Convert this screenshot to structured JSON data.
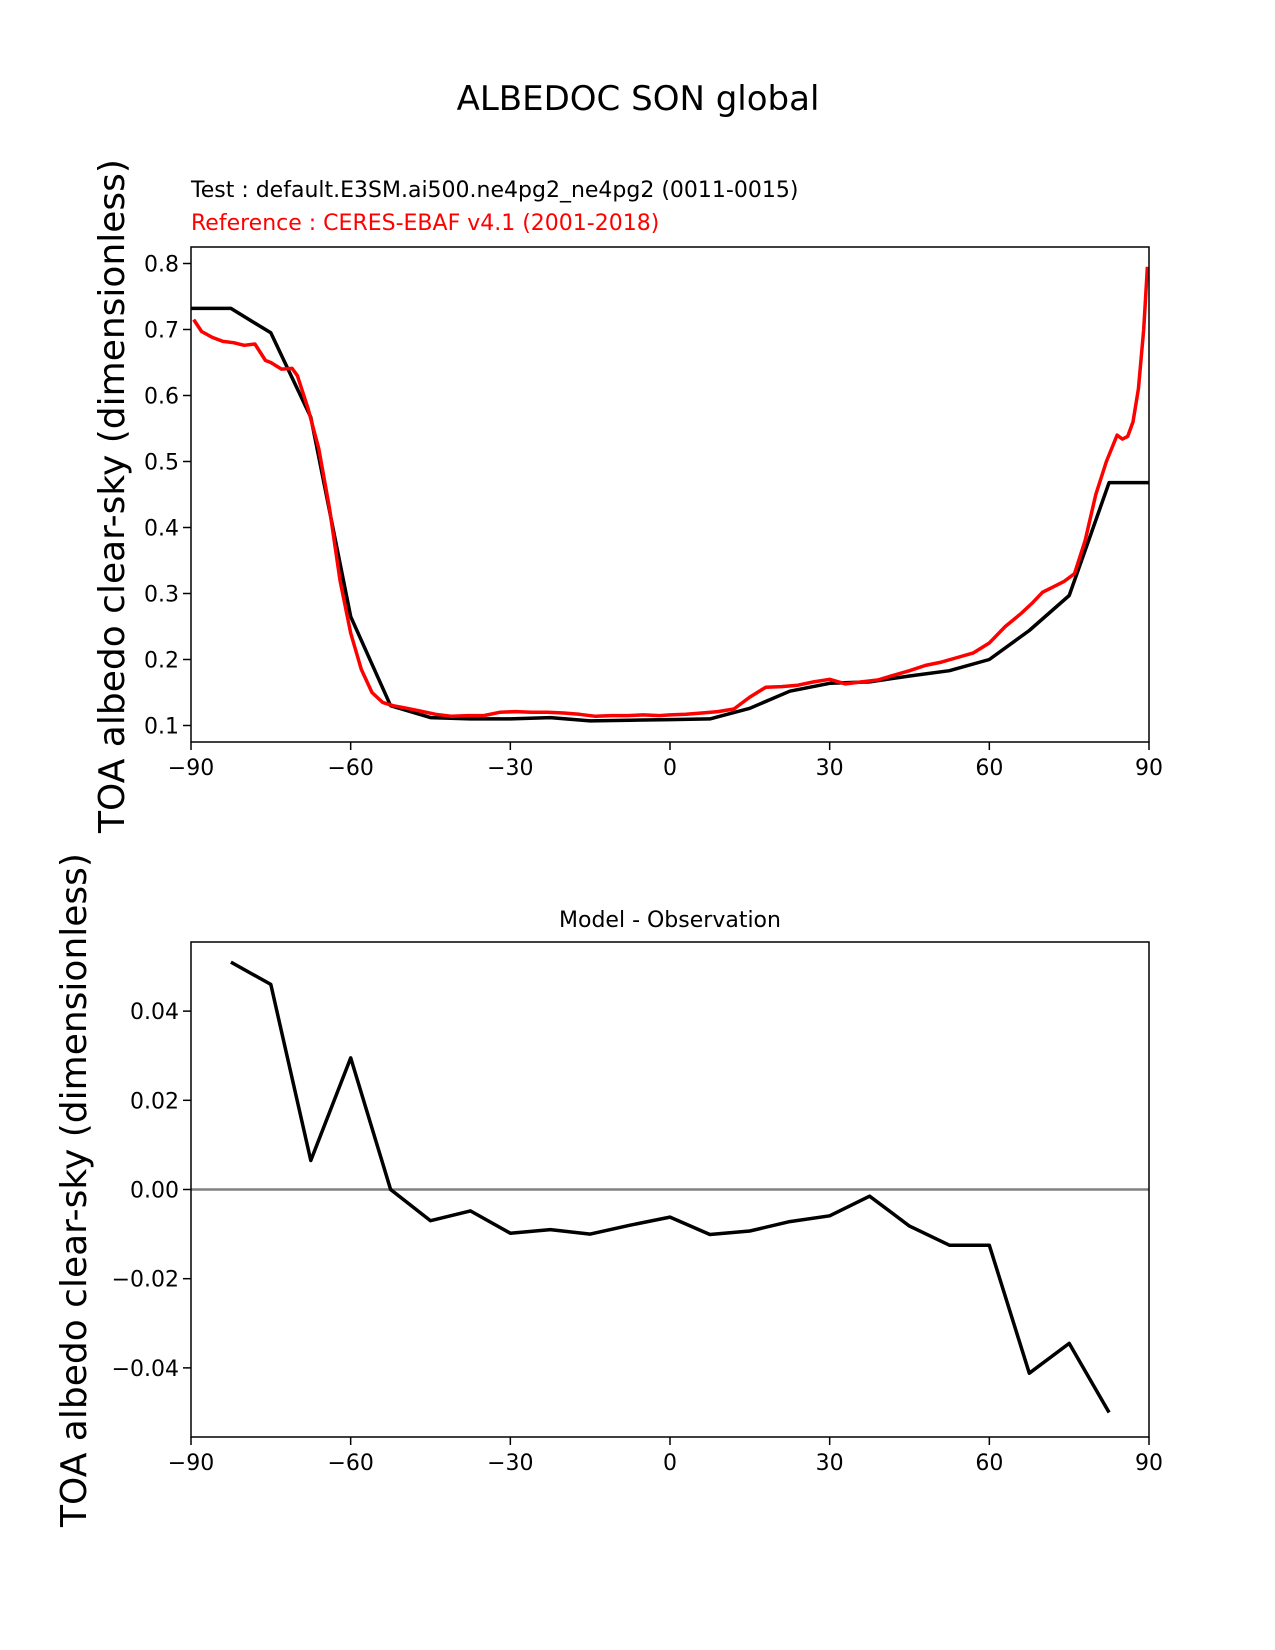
{
  "figure": {
    "suptitle": "ALBEDOC SON global"
  },
  "chart_data": [
    {
      "type": "line",
      "test_label": "Test : default.E3SM.ai500.ne4pg2_ne4pg2 (0011-0015)",
      "reference_label": "Reference : CERES-EBAF v4.1 (2001-2018)",
      "ylabel": "TOA albedo clear-sky (dimensionless)",
      "xlim": [
        -90,
        90
      ],
      "ylim": [
        0.075,
        0.825
      ],
      "xticks": [
        "−90",
        "−60",
        "−30",
        "0",
        "30",
        "60",
        "90"
      ],
      "xtick_values": [
        -90,
        -60,
        -30,
        0,
        30,
        60,
        90
      ],
      "yticks": [
        "0.1",
        "0.2",
        "0.3",
        "0.4",
        "0.5",
        "0.6",
        "0.7",
        "0.8"
      ],
      "ytick_values": [
        0.1,
        0.2,
        0.3,
        0.4,
        0.5,
        0.6,
        0.7,
        0.8
      ],
      "series": [
        {
          "role": "test",
          "color": "#000000",
          "x": [
            -90,
            -82.5,
            -75,
            -67.5,
            -60,
            -52.5,
            -45,
            -37.5,
            -30,
            -22.5,
            -15,
            -7.5,
            0,
            7.5,
            15,
            22.5,
            30,
            37.5,
            45,
            52.5,
            60,
            67.5,
            75,
            82.5,
            90
          ],
          "y": [
            0.732,
            0.732,
            0.695,
            0.567,
            0.265,
            0.13,
            0.112,
            0.11,
            0.11,
            0.112,
            0.107,
            0.108,
            0.109,
            0.11,
            0.126,
            0.152,
            0.164,
            0.166,
            0.175,
            0.183,
            0.2,
            0.244,
            0.297,
            0.468,
            0.468
          ]
        },
        {
          "role": "reference",
          "color": "#ff0000",
          "x": [
            -89.5,
            -88,
            -86,
            -84,
            -82,
            -80,
            -78,
            -76,
            -75,
            -73,
            -71,
            -70,
            -68,
            -66,
            -64,
            -62,
            -60,
            -58,
            -56,
            -54,
            -52,
            -50,
            -47,
            -44,
            -41,
            -38,
            -35,
            -32,
            -29,
            -26,
            -23,
            -20,
            -17,
            -14,
            -11,
            -8,
            -5,
            -2,
            0,
            3,
            6,
            9,
            12,
            15,
            18,
            21,
            24,
            27,
            30,
            33,
            36,
            39,
            42,
            45,
            48,
            51,
            54,
            57,
            60,
            63,
            66,
            68,
            70,
            72,
            74,
            76,
            78,
            80,
            82,
            84,
            85,
            86,
            87,
            88,
            89,
            89.7
          ],
          "y": [
            0.715,
            0.697,
            0.688,
            0.682,
            0.68,
            0.676,
            0.678,
            0.653,
            0.65,
            0.64,
            0.641,
            0.63,
            0.58,
            0.52,
            0.43,
            0.32,
            0.24,
            0.185,
            0.15,
            0.135,
            0.13,
            0.127,
            0.122,
            0.117,
            0.114,
            0.115,
            0.115,
            0.12,
            0.121,
            0.12,
            0.12,
            0.119,
            0.117,
            0.114,
            0.115,
            0.115,
            0.116,
            0.115,
            0.116,
            0.117,
            0.119,
            0.121,
            0.125,
            0.143,
            0.158,
            0.159,
            0.161,
            0.166,
            0.17,
            0.163,
            0.166,
            0.169,
            0.176,
            0.183,
            0.191,
            0.196,
            0.203,
            0.21,
            0.225,
            0.25,
            0.27,
            0.285,
            0.302,
            0.31,
            0.318,
            0.33,
            0.38,
            0.45,
            0.5,
            0.54,
            0.534,
            0.538,
            0.56,
            0.61,
            0.7,
            0.795
          ]
        }
      ]
    },
    {
      "type": "line",
      "title": "Model - Observation",
      "ylabel": "TOA albedo clear-sky (dimensionless)",
      "xlim": [
        -90,
        90
      ],
      "ylim": [
        -0.0555,
        0.0555
      ],
      "xticks": [
        "−90",
        "−60",
        "−30",
        "0",
        "30",
        "60",
        "90"
      ],
      "xtick_values": [
        -90,
        -60,
        -30,
        0,
        30,
        60,
        90
      ],
      "yticks": [
        "−0.04",
        "−0.02",
        "0.00",
        "0.02",
        "0.04"
      ],
      "ytick_values": [
        -0.04,
        -0.02,
        0.0,
        0.02,
        0.04
      ],
      "zero_line_color": "#808080",
      "series": [
        {
          "role": "difference",
          "color": "#000000",
          "x": [
            -82.5,
            -75,
            -67.5,
            -60,
            -52.5,
            -45,
            -37.5,
            -30,
            -22.5,
            -15,
            -7.5,
            0,
            7.5,
            15,
            22.5,
            30,
            37.5,
            45,
            52.5,
            60,
            67.5,
            75,
            82.5
          ],
          "y": [
            0.051,
            0.046,
            0.0065,
            0.0295,
            0.0,
            -0.007,
            -0.0048,
            -0.0098,
            -0.009,
            -0.01,
            -0.008,
            -0.0062,
            -0.0101,
            -0.0093,
            -0.0072,
            -0.0059,
            -0.0015,
            -0.0082,
            -0.0125,
            -0.0125,
            -0.0412,
            -0.0345,
            -0.05
          ]
        }
      ]
    }
  ]
}
